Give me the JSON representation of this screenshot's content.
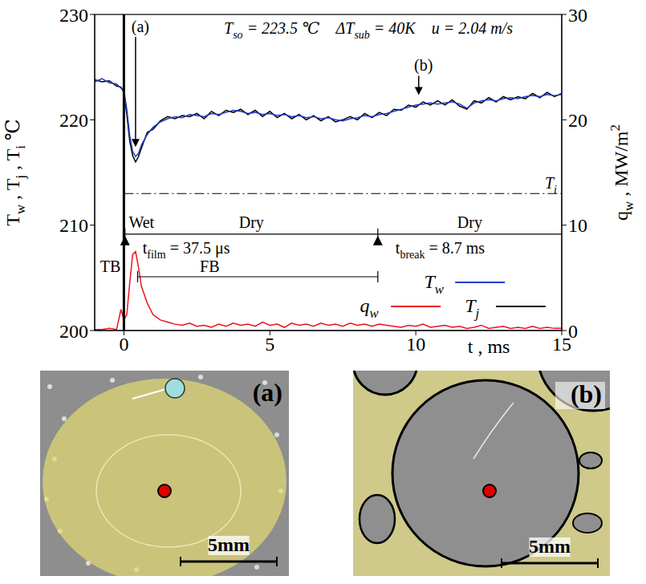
{
  "chart_data": {
    "type": "line",
    "conditions": [
      [
        "T",
        {
          "sub": "so"
        },
        " = 223.5 ℃"
      ],
      [
        "ΔT",
        {
          "sub": "sub"
        },
        " = 40K"
      ],
      [
        "u = 2.04 m/s"
      ]
    ],
    "x_label": [
      "t , ms"
    ],
    "y_label": [
      "T",
      {
        "sub": "w"
      },
      " , T",
      {
        "sub": "j"
      },
      " , T",
      {
        "sub": "i"
      },
      " ℃"
    ],
    "y2_label": [
      "q",
      {
        "sub": "w"
      },
      " , MW/m",
      {
        "sup": "2"
      }
    ],
    "x": [
      -1,
      -0.75,
      -0.5,
      -0.25,
      -0.1,
      0,
      0.1,
      0.2,
      0.3,
      0.4,
      0.5,
      0.6,
      0.8,
      1,
      1.25,
      1.5,
      1.75,
      2,
      2.25,
      2.5,
      2.75,
      3,
      3.25,
      3.5,
      3.75,
      4,
      4.25,
      4.5,
      4.75,
      5,
      5.25,
      5.5,
      5.75,
      6,
      6.25,
      6.5,
      6.75,
      7,
      7.25,
      7.5,
      7.75,
      8,
      8.25,
      8.5,
      8.75,
      9,
      9.25,
      9.5,
      9.75,
      10,
      10.25,
      10.5,
      10.75,
      11,
      11.25,
      11.5,
      11.75,
      12,
      12.25,
      12.5,
      12.75,
      13,
      13.25,
      13.5,
      13.75,
      14,
      14.25,
      14.5,
      14.75,
      15
    ],
    "xlim": [
      -1,
      15
    ],
    "xticks": [
      0,
      5,
      10,
      15
    ],
    "ylim": [
      200,
      230
    ],
    "yticks": [
      200,
      210,
      220,
      230
    ],
    "y2lim": [
      0,
      30
    ],
    "y2ticks": [
      0,
      10,
      20,
      30
    ],
    "grid": false,
    "legend": "lower right",
    "series": [
      {
        "name": "Tw",
        "color": "#1e3cc8",
        "values": [
          223.6,
          223.9,
          223.5,
          223.4,
          223.0,
          222.8,
          221.0,
          218.5,
          217.0,
          216.5,
          216.8,
          217.6,
          218.6,
          219.3,
          219.8,
          220.1,
          220.3,
          220.2,
          220.5,
          220.4,
          220.3,
          220.6,
          220.5,
          220.7,
          220.9,
          220.8,
          220.6,
          220.7,
          220.5,
          220.6,
          220.4,
          220.5,
          220.3,
          220.4,
          220.2,
          220.3,
          220.1,
          220.2,
          220.0,
          219.9,
          220.1,
          220.2,
          220.4,
          220.3,
          220.5,
          220.6,
          220.8,
          221.0,
          221.2,
          221.4,
          221.5,
          221.6,
          221.5,
          221.6,
          221.7,
          221.5,
          221.1,
          221.6,
          221.8,
          221.9,
          221.8,
          222.0,
          222.1,
          222.0,
          222.2,
          222.3,
          222.2,
          222.4,
          222.3,
          222.4
        ]
      },
      {
        "name": "qw",
        "color": "#e8141e",
        "axis": "y2",
        "values": [
          0.1,
          0.1,
          0.2,
          0.1,
          2.0,
          1.0,
          1.5,
          4.5,
          7.2,
          7.5,
          6.0,
          4.2,
          2.6,
          1.5,
          1.0,
          0.8,
          0.6,
          0.5,
          0.7,
          0.4,
          0.5,
          0.3,
          0.6,
          0.4,
          0.7,
          0.5,
          0.6,
          0.4,
          0.8,
          0.5,
          0.6,
          0.3,
          0.7,
          0.5,
          0.6,
          0.4,
          0.7,
          0.5,
          0.6,
          0.4,
          0.7,
          0.5,
          0.6,
          0.4,
          0.6,
          0.5,
          0.4,
          0.3,
          0.5,
          0.4,
          0.6,
          0.3,
          0.4,
          0.5,
          0.3,
          0.4,
          0.2,
          0.3,
          0.5,
          0.2,
          0.3,
          0.4,
          0.2,
          0.3,
          0.2,
          0.4,
          0.2,
          0.3,
          0.2,
          0.2
        ]
      },
      {
        "name": "Tj",
        "color": "#000000",
        "values": [
          223.8,
          223.6,
          223.7,
          223.2,
          223.1,
          222.6,
          220.5,
          218.0,
          216.6,
          216.0,
          216.5,
          217.3,
          218.8,
          219.1,
          219.9,
          220.3,
          220.1,
          220.4,
          220.3,
          220.6,
          220.1,
          220.8,
          220.4,
          220.9,
          220.7,
          221.0,
          220.5,
          220.9,
          220.3,
          220.8,
          220.2,
          220.6,
          220.1,
          220.5,
          220.0,
          220.4,
          219.9,
          220.3,
          219.8,
          220.0,
          220.3,
          220.0,
          220.6,
          220.2,
          220.7,
          220.4,
          221.0,
          220.9,
          221.4,
          221.2,
          221.7,
          221.4,
          221.8,
          221.4,
          221.9,
          221.3,
          221.0,
          221.8,
          221.6,
          222.1,
          221.7,
          222.2,
          221.9,
          222.2,
          222.0,
          222.5,
          222.1,
          222.6,
          222.2,
          222.5
        ]
      }
    ],
    "contact_time": 0,
    "Ti": {
      "label": [
        "T",
        {
          "sub": "i"
        }
      ],
      "value": 213
    },
    "photo_markers": [
      {
        "label": "(a)",
        "t": 0.4
      },
      {
        "label": "(b)",
        "t": 10.1
      }
    ],
    "surface_states": [
      {
        "label": "Wet",
        "start": 0,
        "end": 0.0375
      },
      {
        "label": "Dry",
        "start": 0.0375,
        "end": 8.7
      },
      {
        "label": "Dry",
        "start": 8.7,
        "end": 15
      }
    ],
    "events": [
      {
        "label": [
          "t",
          {
            "sub": "film"
          },
          " = 37.5 μs"
        ],
        "t": 0.0375
      },
      {
        "label": [
          "t",
          {
            "sub": "break"
          },
          " = 8.7 ms"
        ],
        "t": 8.7
      }
    ],
    "boiling_regimes": [
      {
        "label": "TB",
        "start": 0,
        "end": 0.47
      },
      {
        "label": "FB",
        "start": 0.47,
        "end": 8.7
      }
    ]
  },
  "photos": [
    {
      "label": "(a)",
      "scale": "5mm"
    },
    {
      "label": "(b)",
      "scale": "5mm"
    }
  ]
}
